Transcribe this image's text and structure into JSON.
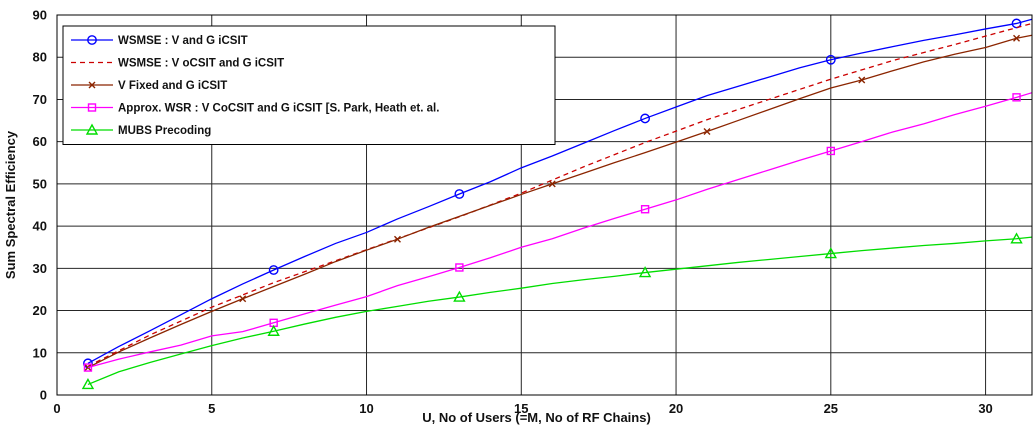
{
  "chart_data": {
    "type": "line",
    "title": "",
    "xlabel": "U, No of Users (=M, No of RF Chains)",
    "ylabel": "Sum Spectral Efficiency",
    "xlim": [
      0,
      31.5
    ],
    "ylim": [
      0,
      90
    ],
    "xticks": [
      0,
      5,
      10,
      15,
      20,
      25,
      30
    ],
    "yticks": [
      0,
      10,
      20,
      30,
      40,
      50,
      60,
      70,
      80,
      90
    ],
    "grid": true,
    "legend_position": "top-left",
    "series": [
      {
        "name": "WSMSE : V and G iCSIT",
        "color": "#0000ff",
        "line_style": "solid",
        "marker": "circle",
        "x": [
          1,
          2,
          3,
          4,
          5,
          6,
          7,
          8,
          9,
          10,
          11,
          12,
          13,
          14,
          15,
          16,
          17,
          18,
          19,
          20,
          21,
          22,
          23,
          24,
          25,
          26,
          27,
          28,
          29,
          30,
          31,
          31.5
        ],
        "y": [
          7.5,
          11.5,
          15.2,
          19,
          22.8,
          26.3,
          29.6,
          32.8,
          35.9,
          38.5,
          41.7,
          44.6,
          47.6,
          50.5,
          53.8,
          56.6,
          59.6,
          62.6,
          65.5,
          68.2,
          70.9,
          73.1,
          75.3,
          77.5,
          79.4,
          81,
          82.5,
          84,
          85.3,
          86.7,
          88,
          89
        ],
        "marker_x": [
          1,
          7,
          13,
          19,
          25,
          31
        ]
      },
      {
        "name": "WSMSE : V oCSIT and G iCSIT",
        "color": "#cc0000",
        "line_style": "dashed",
        "marker": "none",
        "x": [
          1,
          3,
          5,
          7,
          9,
          11,
          13,
          15,
          17,
          19,
          21,
          23,
          25,
          27,
          29,
          31,
          31.5
        ],
        "y": [
          6.8,
          14.2,
          20.8,
          26.6,
          31.8,
          37,
          42.2,
          47.8,
          54,
          59.8,
          65.2,
          70,
          74.8,
          79.2,
          83,
          87,
          88
        ]
      },
      {
        "name": "V Fixed and G iCSIT",
        "color": "#8b2500",
        "line_style": "solid",
        "marker": "x",
        "x": [
          1,
          2,
          3,
          4,
          5,
          6,
          7,
          8,
          9,
          10,
          11,
          12,
          13,
          14,
          15,
          16,
          17,
          18,
          19,
          20,
          21,
          22,
          23,
          24,
          25,
          26,
          27,
          28,
          29,
          30,
          31,
          31.5
        ],
        "y": [
          6.5,
          10.2,
          13.5,
          16.7,
          19.8,
          22.8,
          25.7,
          28.6,
          31.6,
          34.3,
          36.9,
          39.7,
          42.3,
          44.9,
          47.5,
          50,
          52.5,
          55,
          57.4,
          59.9,
          62.4,
          65,
          67.6,
          70.2,
          72.7,
          74.6,
          76.8,
          78.9,
          80.7,
          82.3,
          84.5,
          85.2
        ],
        "marker_x": [
          1,
          6,
          11,
          16,
          21,
          26,
          31
        ]
      },
      {
        "name": "Approx. WSR : V CoCSIT and G iCSIT [S. Park, Heath et. al.",
        "color": "#ff00ff",
        "line_style": "solid",
        "marker": "square",
        "x": [
          1,
          2,
          3,
          4,
          5,
          6,
          7,
          8,
          9,
          10,
          11,
          12,
          13,
          14,
          15,
          16,
          17,
          18,
          19,
          20,
          21,
          22,
          23,
          24,
          25,
          26,
          27,
          28,
          29,
          30,
          31,
          31.5
        ],
        "y": [
          6.5,
          8.5,
          10.2,
          11.8,
          14,
          15,
          17.1,
          19.2,
          21.3,
          23.3,
          25.9,
          28,
          30.2,
          32.5,
          35,
          37,
          39.5,
          41.8,
          44,
          46.2,
          48.7,
          51,
          53.3,
          55.6,
          57.8,
          60,
          62.3,
          64.2,
          66.4,
          68.4,
          70.5,
          71.6
        ],
        "marker_x": [
          1,
          7,
          13,
          19,
          25,
          31
        ]
      },
      {
        "name": "MUBS Precoding",
        "color": "#00dd00",
        "line_style": "solid",
        "marker": "triangle",
        "x": [
          1,
          2,
          3,
          4,
          5,
          6,
          7,
          8,
          9,
          10,
          11,
          12,
          13,
          14,
          15,
          16,
          17,
          18,
          19,
          20,
          21,
          22,
          23,
          24,
          25,
          26,
          27,
          28,
          29,
          30,
          31,
          31.5
        ],
        "y": [
          2.5,
          5.5,
          7.7,
          9.7,
          11.7,
          13.5,
          15.1,
          16.8,
          18.4,
          19.8,
          21,
          22.2,
          23.2,
          24.3,
          25.3,
          26.4,
          27.3,
          28.1,
          29,
          29.8,
          30.6,
          31.4,
          32.1,
          32.8,
          33.5,
          34.2,
          34.8,
          35.4,
          35.9,
          36.5,
          37,
          37.4
        ],
        "marker_x": [
          1,
          7,
          13,
          19,
          25,
          31
        ]
      }
    ]
  }
}
